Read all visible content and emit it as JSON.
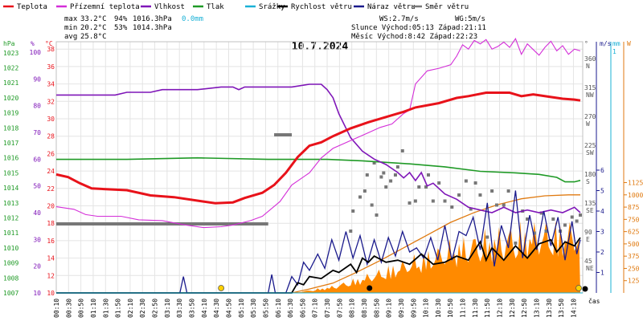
{
  "chart_data": {
    "type": "line",
    "title": "10.7.2024",
    "x_label": "čas",
    "x_ticks": [
      "00:10",
      "00:30",
      "00:50",
      "01:10",
      "01:30",
      "01:50",
      "02:10",
      "02:30",
      "02:50",
      "03:10",
      "03:30",
      "03:50",
      "04:10",
      "04:30",
      "04:50",
      "05:10",
      "05:30",
      "05:50",
      "06:10",
      "06:30",
      "06:50",
      "07:10",
      "07:30",
      "07:50",
      "08:10",
      "08:30",
      "08:50",
      "09:10",
      "09:30",
      "09:50",
      "10:10",
      "10:30",
      "10:50",
      "11:10",
      "11:30",
      "11:50",
      "12:10",
      "12:30",
      "12:50",
      "13:10",
      "13:30",
      "13:50",
      "14:10"
    ],
    "axes": {
      "pressure": {
        "unit": "hPa",
        "ticks": [
          "1023",
          "1022",
          "1021",
          "1020",
          "1019",
          "1018",
          "1017",
          "1016",
          "1015",
          "1014",
          "1013",
          "1012",
          "1011",
          "1010",
          "1009",
          "1008",
          "1007"
        ],
        "range": [
          1007,
          1023.7
        ]
      },
      "humidity": {
        "unit": "%",
        "ticks": [
          "100",
          "90",
          "80",
          "70",
          "60",
          "50",
          "40",
          "30",
          "20",
          "10"
        ],
        "range": [
          10,
          103.5
        ]
      },
      "temperature": {
        "unit": "°C",
        "ticks": [
          "38",
          "36",
          "34",
          "32",
          "30",
          "28",
          "26",
          "24",
          "22",
          "20",
          "18",
          "16",
          "14",
          "12",
          "10"
        ],
        "range": [
          10,
          38.7
        ]
      },
      "direction": {
        "unit": "°",
        "ticks": [
          "360",
          "315",
          "270",
          "225",
          "180",
          "135",
          "90",
          "45"
        ],
        "labels": [
          "N",
          "NW",
          "W",
          "SW",
          "S",
          "SE",
          "E",
          "NE"
        ]
      },
      "wind": {
        "unit": "m/s",
        "ticks": [
          "6",
          "5",
          "4",
          "3",
          "2",
          "1"
        ]
      },
      "rain": {
        "unit": "mm",
        "ticks": [
          "1"
        ]
      },
      "radiation": {
        "unit": "W",
        "ticks": [
          "1125",
          "1000",
          "875",
          "750",
          "625",
          "500",
          "375",
          "250",
          "125"
        ]
      }
    },
    "legend": [
      {
        "name": "Teplota",
        "color": "#e8121a"
      },
      {
        "name": "Přízemní teplota",
        "color": "#d42ed8"
      },
      {
        "name": "Vlhkost",
        "color": "#7f16b8"
      },
      {
        "name": "Tlak",
        "color": "#1f9a26"
      },
      {
        "name": "Srážky",
        "color": "#1ab1d6"
      },
      {
        "name": "Rychlost větru",
        "color": "#000000"
      },
      {
        "name": "Náraz větru",
        "color": "#1a1a8c"
      },
      {
        "name": "Směr větru",
        "color": "#777777"
      }
    ],
    "series": {
      "temperature": [
        [
          0,
          23.6
        ],
        [
          10,
          23.3
        ],
        [
          20,
          22.6
        ],
        [
          30,
          22.0
        ],
        [
          60,
          21.8
        ],
        [
          80,
          21.2
        ],
        [
          100,
          21.0
        ],
        [
          125,
          20.5
        ],
        [
          135,
          20.3
        ],
        [
          150,
          20.4
        ],
        [
          160,
          20.9
        ],
        [
          175,
          21.5
        ],
        [
          185,
          22.4
        ],
        [
          195,
          23.8
        ],
        [
          205,
          25.6
        ],
        [
          215,
          26.9
        ],
        [
          225,
          27.3
        ],
        [
          235,
          28.0
        ],
        [
          250,
          28.9
        ],
        [
          265,
          29.6
        ],
        [
          280,
          30.2
        ],
        [
          295,
          30.8
        ],
        [
          305,
          31.3
        ],
        [
          325,
          31.8
        ],
        [
          340,
          32.4
        ],
        [
          350,
          32.6
        ],
        [
          365,
          33.0
        ],
        [
          385,
          33.0
        ],
        [
          395,
          32.6
        ],
        [
          405,
          32.8
        ],
        [
          420,
          32.5
        ],
        [
          430,
          32.3
        ],
        [
          440,
          32.2
        ],
        [
          445,
          32.1
        ]
      ],
      "ground_temperature": [
        [
          0,
          19.9
        ],
        [
          15,
          19.6
        ],
        [
          25,
          19.0
        ],
        [
          35,
          18.8
        ],
        [
          55,
          18.8
        ],
        [
          70,
          18.4
        ],
        [
          90,
          18.3
        ],
        [
          110,
          17.8
        ],
        [
          125,
          17.5
        ],
        [
          140,
          17.6
        ],
        [
          150,
          17.8
        ],
        [
          165,
          18.3
        ],
        [
          175,
          18.8
        ],
        [
          190,
          20.5
        ],
        [
          200,
          22.4
        ],
        [
          215,
          23.8
        ],
        [
          225,
          25.5
        ],
        [
          235,
          26.6
        ],
        [
          250,
          27.5
        ],
        [
          265,
          28.4
        ],
        [
          275,
          29.0
        ],
        [
          285,
          29.4
        ],
        [
          295,
          30.6
        ],
        [
          300,
          31.0
        ],
        [
          305,
          34.0
        ],
        [
          315,
          35.5
        ],
        [
          325,
          35.8
        ],
        [
          335,
          36.2
        ],
        [
          340,
          37.2
        ],
        [
          345,
          38.5
        ],
        [
          350,
          38.0
        ],
        [
          355,
          39.0
        ],
        [
          360,
          38.6
        ],
        [
          365,
          39.1
        ],
        [
          370,
          38.0
        ],
        [
          375,
          38.3
        ],
        [
          380,
          38.8
        ],
        [
          385,
          38.2
        ],
        [
          390,
          39.2
        ],
        [
          395,
          37.4
        ],
        [
          400,
          38.6
        ],
        [
          410,
          37.3
        ],
        [
          415,
          38.2
        ],
        [
          420,
          38.9
        ],
        [
          425,
          37.8
        ],
        [
          430,
          38.4
        ],
        [
          435,
          37.4
        ],
        [
          440,
          38.0
        ],
        [
          445,
          37.8
        ]
      ],
      "humidity": [
        [
          0,
          84
        ],
        [
          10,
          84
        ],
        [
          20,
          84
        ],
        [
          30,
          84
        ],
        [
          50,
          84
        ],
        [
          60,
          85
        ],
        [
          80,
          85
        ],
        [
          90,
          86
        ],
        [
          120,
          86
        ],
        [
          140,
          87
        ],
        [
          150,
          87
        ],
        [
          155,
          86
        ],
        [
          160,
          87
        ],
        [
          200,
          87
        ],
        [
          215,
          88
        ],
        [
          225,
          88
        ],
        [
          230,
          86
        ],
        [
          235,
          83
        ],
        [
          240,
          77
        ],
        [
          250,
          68
        ],
        [
          260,
          63
        ],
        [
          270,
          60
        ],
        [
          280,
          58
        ],
        [
          290,
          55
        ],
        [
          295,
          53
        ],
        [
          300,
          55
        ],
        [
          305,
          52
        ],
        [
          310,
          55
        ],
        [
          315,
          50
        ],
        [
          320,
          51
        ],
        [
          330,
          47
        ],
        [
          340,
          45
        ],
        [
          350,
          42
        ],
        [
          360,
          41
        ],
        [
          370,
          40
        ],
        [
          380,
          42
        ],
        [
          390,
          40
        ],
        [
          400,
          41
        ],
        [
          410,
          40
        ],
        [
          420,
          41
        ],
        [
          430,
          40
        ],
        [
          440,
          42
        ],
        [
          445,
          40
        ]
      ],
      "pressure": [
        [
          0,
          1015.9
        ],
        [
          60,
          1015.9
        ],
        [
          120,
          1016.0
        ],
        [
          180,
          1015.9
        ],
        [
          230,
          1015.9
        ],
        [
          260,
          1015.8
        ],
        [
          300,
          1015.6
        ],
        [
          330,
          1015.4
        ],
        [
          360,
          1015.1
        ],
        [
          390,
          1015.0
        ],
        [
          410,
          1014.9
        ],
        [
          425,
          1014.7
        ],
        [
          432,
          1014.4
        ],
        [
          440,
          1014.4
        ],
        [
          445,
          1014.5
        ]
      ],
      "wind_speed": [
        [
          0,
          0
        ],
        [
          200,
          0
        ],
        [
          205,
          0.5
        ],
        [
          210,
          0.4
        ],
        [
          215,
          0.8
        ],
        [
          225,
          0.7
        ],
        [
          235,
          1.1
        ],
        [
          240,
          1.0
        ],
        [
          250,
          1.4
        ],
        [
          255,
          1.0
        ],
        [
          260,
          1.7
        ],
        [
          265,
          1.5
        ],
        [
          270,
          1.8
        ],
        [
          280,
          1.5
        ],
        [
          290,
          1.6
        ],
        [
          300,
          1.4
        ],
        [
          310,
          1.9
        ],
        [
          320,
          1.4
        ],
        [
          330,
          1.5
        ],
        [
          340,
          1.8
        ],
        [
          350,
          1.6
        ],
        [
          360,
          2.5
        ],
        [
          365,
          1.6
        ],
        [
          370,
          2.2
        ],
        [
          380,
          1.6
        ],
        [
          390,
          2.3
        ],
        [
          400,
          1.7
        ],
        [
          410,
          2.4
        ],
        [
          420,
          2.6
        ],
        [
          425,
          2.0
        ],
        [
          432,
          2.5
        ],
        [
          440,
          2.3
        ],
        [
          445,
          2.7
        ]
      ],
      "wind_gust": [
        [
          0,
          0
        ],
        [
          105,
          0
        ],
        [
          108,
          0.8
        ],
        [
          111,
          0
        ],
        [
          180,
          0
        ],
        [
          183,
          0.9
        ],
        [
          186,
          0
        ],
        [
          195,
          0
        ],
        [
          200,
          0.8
        ],
        [
          205,
          0.4
        ],
        [
          210,
          1.5
        ],
        [
          215,
          1.1
        ],
        [
          222,
          1.9
        ],
        [
          228,
          1.2
        ],
        [
          234,
          2.6
        ],
        [
          240,
          1.6
        ],
        [
          246,
          3.0
        ],
        [
          252,
          1.7
        ],
        [
          258,
          2.8
        ],
        [
          264,
          1.4
        ],
        [
          270,
          2.6
        ],
        [
          276,
          1.5
        ],
        [
          282,
          2.7
        ],
        [
          288,
          1.8
        ],
        [
          294,
          3.0
        ],
        [
          300,
          2.0
        ],
        [
          306,
          2.2
        ],
        [
          312,
          1.7
        ],
        [
          318,
          2.7
        ],
        [
          324,
          1.6
        ],
        [
          330,
          3.3
        ],
        [
          336,
          1.6
        ],
        [
          342,
          3.0
        ],
        [
          348,
          2.8
        ],
        [
          354,
          3.7
        ],
        [
          360,
          2.1
        ],
        [
          366,
          4.4
        ],
        [
          372,
          1.3
        ],
        [
          378,
          3.3
        ],
        [
          384,
          2.2
        ],
        [
          390,
          5.0
        ],
        [
          396,
          1.7
        ],
        [
          402,
          3.8
        ],
        [
          408,
          2.1
        ],
        [
          414,
          4.0
        ],
        [
          420,
          2.3
        ],
        [
          426,
          3.7
        ],
        [
          432,
          1.6
        ],
        [
          438,
          3.5
        ],
        [
          442,
          1.9
        ],
        [
          445,
          2.6
        ]
      ],
      "wind_direction": [
        [
          250,
          30
        ],
        [
          252,
          40
        ],
        [
          258,
          47
        ],
        [
          262,
          50
        ],
        [
          264,
          58
        ],
        [
          268,
          43
        ],
        [
          270,
          64
        ],
        [
          272,
          38
        ],
        [
          276,
          57
        ],
        [
          278,
          59
        ],
        [
          280,
          52
        ],
        [
          284,
          55
        ],
        [
          288,
          58
        ],
        [
          290,
          62
        ],
        [
          294,
          70
        ],
        [
          300,
          44
        ],
        [
          305,
          45
        ],
        [
          308,
          52
        ],
        [
          314,
          52
        ],
        [
          316,
          58
        ],
        [
          320,
          45
        ],
        [
          325,
          54
        ],
        [
          330,
          45
        ],
        [
          336,
          42
        ],
        [
          342,
          48
        ],
        [
          348,
          55
        ],
        [
          352,
          41
        ],
        [
          356,
          54
        ],
        [
          360,
          48
        ],
        [
          366,
          27
        ],
        [
          370,
          50
        ],
        [
          374,
          43
        ],
        [
          380,
          43
        ],
        [
          384,
          50
        ],
        [
          390,
          24
        ],
        [
          396,
          40
        ],
        [
          400,
          36
        ],
        [
          406,
          29
        ],
        [
          412,
          39
        ],
        [
          416,
          30
        ],
        [
          422,
          36
        ],
        [
          428,
          30
        ],
        [
          432,
          33
        ],
        [
          438,
          37
        ],
        [
          442,
          35
        ],
        [
          445,
          38
        ]
      ],
      "solar_radiation": [
        [
          200,
          0
        ],
        [
          215,
          40
        ],
        [
          235,
          100
        ],
        [
          255,
          210
        ],
        [
          275,
          330
        ],
        [
          295,
          460
        ],
        [
          315,
          590
        ],
        [
          335,
          720
        ],
        [
          355,
          820
        ],
        [
          375,
          900
        ],
        [
          395,
          960
        ],
        [
          415,
          990
        ],
        [
          435,
          1000
        ],
        [
          445,
          1000
        ]
      ]
    },
    "stats": {
      "max": {
        "temp": "33.2°C",
        "hum": "94%",
        "press": "1016.3hPa",
        "rain": "0.0mm"
      },
      "min": {
        "temp": "20.2°C",
        "hum": "53%",
        "press": "1014.3hPa"
      },
      "avg": {
        "temp": "25.8°C"
      },
      "ws": "WS:2.7m/s",
      "wg": "WG:5m/s",
      "sun": "Slunce Východ:05:13  Západ:21:11",
      "moon": "Měsíc  Východ:8:42   Západ:22:23"
    }
  }
}
